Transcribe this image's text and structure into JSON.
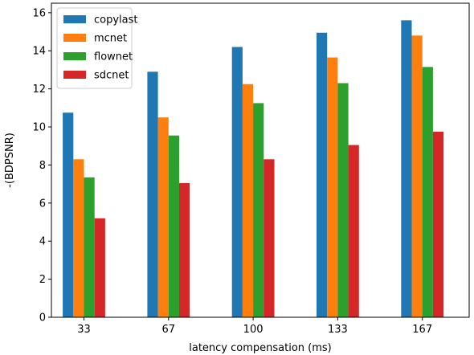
{
  "chart_data": {
    "type": "bar",
    "title": "",
    "xlabel": "latency compensation (ms)",
    "ylabel": "-(BDPSNR)",
    "categories": [
      "33",
      "67",
      "100",
      "133",
      "167"
    ],
    "ylim": [
      0,
      16.5
    ],
    "yticks": [
      0,
      2,
      4,
      6,
      8,
      10,
      12,
      14,
      16
    ],
    "grid": false,
    "legend_position": "top-left",
    "series": [
      {
        "name": "copylast",
        "color": "#1f77b4",
        "values": [
          10.75,
          12.9,
          14.2,
          14.95,
          15.6
        ]
      },
      {
        "name": "mcnet",
        "color": "#ff7f0e",
        "values": [
          8.3,
          10.5,
          12.25,
          13.65,
          14.8
        ]
      },
      {
        "name": "flownet",
        "color": "#2ca02c",
        "values": [
          7.35,
          9.55,
          11.25,
          12.3,
          13.15
        ]
      },
      {
        "name": "sdcnet",
        "color": "#d62728",
        "values": [
          5.2,
          7.05,
          8.3,
          9.05,
          9.75
        ]
      }
    ]
  }
}
